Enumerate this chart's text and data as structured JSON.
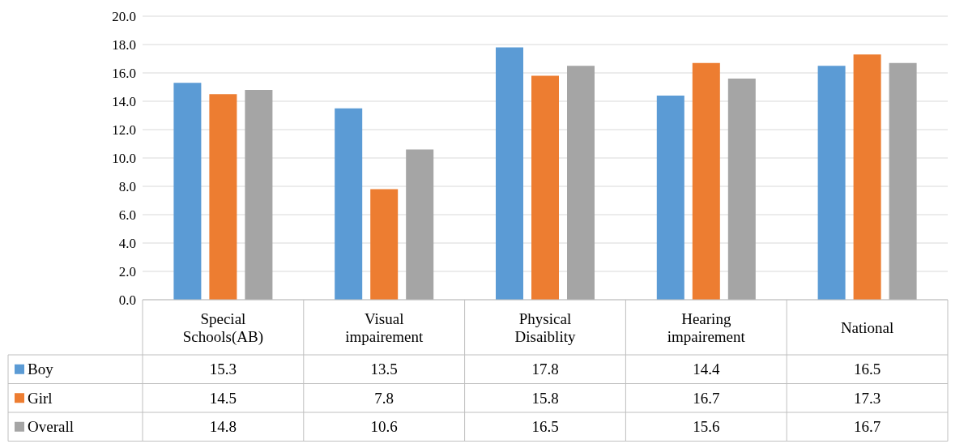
{
  "chart_data": {
    "type": "bar",
    "categories": [
      "Special Schools(AB)",
      "Visual impairement",
      "Physical Disaiblity",
      "Hearing impairement",
      "National"
    ],
    "series": [
      {
        "name": "Boy",
        "color": "#5b9bd5",
        "values": [
          15.3,
          13.5,
          17.8,
          14.4,
          16.5
        ]
      },
      {
        "name": "Girl",
        "color": "#ed7d31",
        "values": [
          14.5,
          7.8,
          15.8,
          16.7,
          17.3
        ]
      },
      {
        "name": "Overall",
        "color": "#a5a5a5",
        "values": [
          14.8,
          10.6,
          16.5,
          15.6,
          16.7
        ]
      }
    ],
    "ylim": [
      0,
      20
    ],
    "yticks": [
      {
        "value": 0,
        "label": "0.0"
      },
      {
        "value": 2,
        "label": "2.0"
      },
      {
        "value": 4,
        "label": "4.0"
      },
      {
        "value": 6,
        "label": "6.0"
      },
      {
        "value": 8,
        "label": "8.0"
      },
      {
        "value": 10,
        "label": "10.0"
      },
      {
        "value": 12,
        "label": "12.0"
      },
      {
        "value": 14,
        "label": "14.0"
      },
      {
        "value": 16,
        "label": "16.0"
      },
      {
        "value": 18,
        "label": "18.0"
      },
      {
        "value": 20,
        "label": "20.0"
      }
    ],
    "grid": "y",
    "legend": "bottom",
    "data_labels": true
  }
}
